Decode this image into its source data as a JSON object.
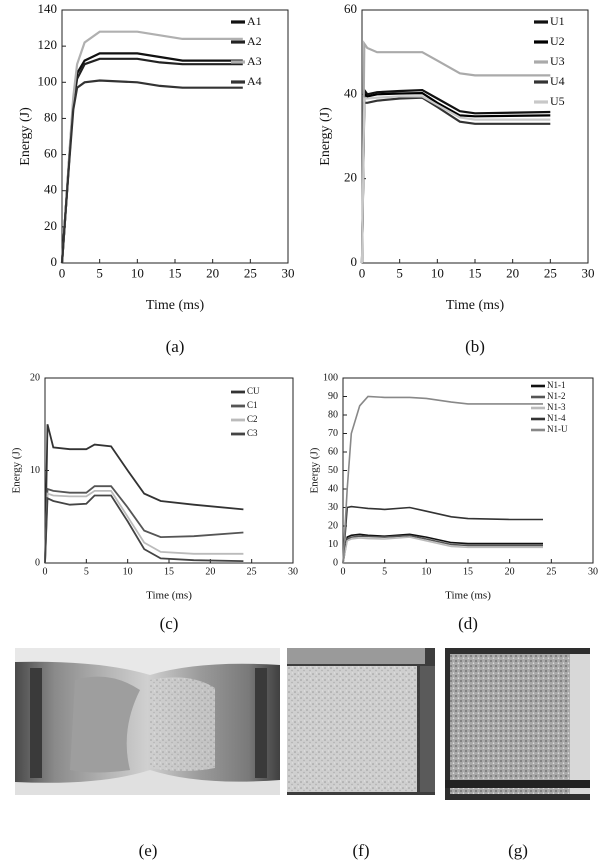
{
  "chart_data": [
    {
      "type": "line",
      "caption": "(a)",
      "x_label": "Time (ms)",
      "y_label": "Energy (J)",
      "xlim": [
        0,
        30
      ],
      "xticks": [
        0,
        5,
        10,
        15,
        20,
        25,
        30
      ],
      "ylim": [
        0,
        140
      ],
      "yticks": [
        0,
        20,
        40,
        60,
        80,
        100,
        120,
        140
      ],
      "x": [
        0,
        0.5,
        1,
        1.5,
        2,
        3,
        5,
        10,
        13,
        16,
        24
      ],
      "series": [
        {
          "name": "A1",
          "color": "#111111",
          "values": [
            0,
            30,
            60,
            90,
            105,
            112,
            116,
            116,
            114,
            112,
            112
          ]
        },
        {
          "name": "A2",
          "color": "#222222",
          "values": [
            0,
            30,
            60,
            88,
            102,
            110,
            113,
            113,
            111,
            110,
            110
          ]
        },
        {
          "name": "A3",
          "color": "#b0b0b0",
          "values": [
            0,
            30,
            62,
            92,
            110,
            122,
            128,
            128,
            126,
            124,
            124
          ]
        },
        {
          "name": "A4",
          "color": "#333333",
          "values": [
            0,
            30,
            58,
            85,
            97,
            100,
            101,
            100,
            98,
            97,
            97
          ]
        }
      ]
    },
    {
      "type": "line",
      "caption": "(b)",
      "x_label": "Time (ms)",
      "y_label": "Energy (J)",
      "xlim": [
        0,
        30
      ],
      "xticks": [
        0,
        5,
        10,
        15,
        20,
        25,
        30
      ],
      "ylim": [
        0,
        60
      ],
      "yticks": [
        0,
        20,
        40,
        60
      ],
      "x": [
        0,
        0.3,
        0.7,
        2,
        5,
        8,
        10,
        13,
        15,
        25
      ],
      "series": [
        {
          "name": "U1",
          "color": "#111111",
          "values": [
            0,
            41,
            40,
            40.5,
            40.8,
            41,
            39,
            36,
            35.5,
            35.8
          ]
        },
        {
          "name": "U2",
          "color": "#000000",
          "values": [
            0,
            40,
            39.5,
            40,
            40.2,
            40.3,
            38,
            35,
            34.8,
            35
          ]
        },
        {
          "name": "U3",
          "color": "#aaaaaa",
          "values": [
            0,
            52,
            51,
            50,
            50,
            50,
            48,
            45,
            44.5,
            44.5
          ]
        },
        {
          "name": "U4",
          "color": "#333333",
          "values": [
            0,
            38,
            38,
            38.5,
            39,
            39.2,
            37,
            33.5,
            33,
            33
          ]
        },
        {
          "name": "U5",
          "color": "#c8c8c8",
          "values": [
            0,
            39,
            39,
            39.2,
            39.5,
            39.5,
            37.5,
            34.5,
            34,
            34
          ]
        }
      ]
    },
    {
      "type": "line",
      "caption": "(c)",
      "x_label": "Time (ms)",
      "y_label": "Energy (J)",
      "xlim": [
        0,
        30
      ],
      "xticks": [
        0,
        5,
        10,
        15,
        20,
        25,
        30
      ],
      "ylim": [
        0,
        20
      ],
      "yticks": [
        0,
        10,
        20
      ],
      "x": [
        0,
        0.3,
        1,
        3,
        5,
        6,
        8,
        10,
        12,
        14,
        18,
        24
      ],
      "series": [
        {
          "name": "CU",
          "color": "#333333",
          "values": [
            0,
            15,
            12.5,
            12.3,
            12.3,
            12.8,
            12.6,
            10,
            7.5,
            6.7,
            6.3,
            5.8
          ]
        },
        {
          "name": "C1",
          "color": "#555555",
          "values": [
            0,
            8,
            7.8,
            7.6,
            7.6,
            8.3,
            8.3,
            6,
            3.5,
            2.8,
            2.9,
            3.3
          ]
        },
        {
          "name": "C2",
          "color": "#bbbbbb",
          "values": [
            0,
            7.5,
            7.3,
            7.2,
            7.2,
            7.8,
            7.8,
            5,
            2.2,
            1.2,
            1,
            1
          ]
        },
        {
          "name": "C3",
          "color": "#444444",
          "values": [
            0,
            7,
            6.7,
            6.3,
            6.4,
            7.3,
            7.3,
            4.5,
            1.5,
            0.5,
            0.3,
            0.2
          ]
        }
      ]
    },
    {
      "type": "line",
      "caption": "(d)",
      "x_label": "Time (ms)",
      "y_label": "Energy (J)",
      "xlim": [
        0,
        30
      ],
      "xticks": [
        0,
        5,
        10,
        15,
        20,
        25,
        30
      ],
      "ylim": [
        0,
        100
      ],
      "yticks": [
        0,
        10,
        20,
        30,
        40,
        50,
        60,
        70,
        80,
        90,
        100
      ],
      "x": [
        0,
        0.5,
        1,
        2,
        3,
        5,
        8,
        10,
        13,
        15,
        20,
        24
      ],
      "series": [
        {
          "name": "N1-1",
          "color": "#111111",
          "values": [
            0,
            14,
            15,
            15.5,
            15,
            14.5,
            15.5,
            14,
            11,
            10.5,
            10.5,
            10.5
          ]
        },
        {
          "name": "N1-2",
          "color": "#555555",
          "values": [
            0,
            13,
            14,
            14.5,
            14.3,
            14,
            14.8,
            13,
            10,
            9.5,
            9.5,
            9.5
          ]
        },
        {
          "name": "N1-3",
          "color": "#bbbbbb",
          "values": [
            0,
            12,
            13,
            13.5,
            13.2,
            13,
            14,
            12,
            9,
            8.5,
            8.5,
            8.5
          ]
        },
        {
          "name": "N1-4",
          "color": "#333333",
          "values": [
            0,
            30,
            30.5,
            30,
            29.5,
            29,
            30,
            28,
            25,
            24,
            23.5,
            23.5
          ]
        },
        {
          "name": "N1-U",
          "color": "#888888",
          "values": [
            0,
            40,
            70,
            85,
            90,
            89.5,
            89.5,
            89,
            87,
            86,
            86,
            86
          ]
        }
      ]
    }
  ],
  "photos": {
    "captions": [
      "(e)",
      "(f)",
      "(g)"
    ]
  }
}
